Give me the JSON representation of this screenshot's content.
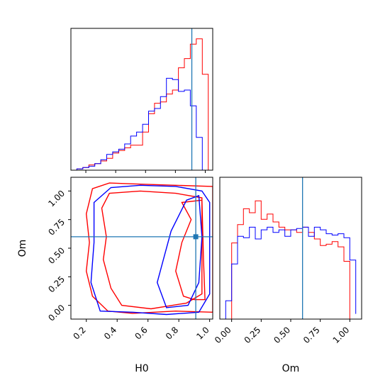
{
  "chart_data": [
    {
      "panel": "H0 marginal",
      "type": "histogram-step",
      "xlim": [
        0.1,
        1.05
      ],
      "truth": 0.91,
      "series": [
        {
          "color": "#ff0000",
          "edges": [
            0.14,
            0.18,
            0.22,
            0.26,
            0.3,
            0.34,
            0.38,
            0.42,
            0.46,
            0.5,
            0.54,
            0.58,
            0.62,
            0.66,
            0.7,
            0.74,
            0.78,
            0.82,
            0.86,
            0.9,
            0.94,
            0.98,
            1.02
          ],
          "values": [
            0.01,
            0.02,
            0.04,
            0.05,
            0.07,
            0.09,
            0.13,
            0.15,
            0.17,
            0.19,
            0.19,
            0.29,
            0.43,
            0.51,
            0.52,
            0.58,
            0.61,
            0.78,
            0.85,
            0.96,
            1.0,
            0.73,
            0.0
          ]
        },
        {
          "color": "#0000ff",
          "edges": [
            0.14,
            0.18,
            0.22,
            0.26,
            0.3,
            0.34,
            0.38,
            0.42,
            0.46,
            0.5,
            0.54,
            0.58,
            0.62,
            0.66,
            0.7,
            0.74,
            0.78,
            0.82,
            0.86,
            0.9,
            0.94,
            0.98,
            1.02
          ],
          "values": [
            0.01,
            0.02,
            0.03,
            0.05,
            0.08,
            0.12,
            0.14,
            0.16,
            0.2,
            0.26,
            0.29,
            0.35,
            0.45,
            0.47,
            0.56,
            0.7,
            0.69,
            0.6,
            0.61,
            0.49,
            0.25,
            0.0,
            0.0
          ]
        }
      ]
    },
    {
      "panel": "Om marginal",
      "type": "histogram-step",
      "xlim": [
        -0.1,
        1.1
      ],
      "truth": 0.6,
      "xlabel": "Om",
      "xticks": [
        "0.00",
        "0.25",
        "0.50",
        "0.75",
        "1.00"
      ],
      "series": [
        {
          "color": "#ff0000",
          "edges": [
            0.0,
            0.05,
            0.1,
            0.15,
            0.2,
            0.25,
            0.3,
            0.35,
            0.4,
            0.45,
            0.5,
            0.55,
            0.6,
            0.65,
            0.7,
            0.75,
            0.8,
            0.85,
            0.9,
            0.95,
            1.0
          ],
          "values": [
            0.58,
            0.72,
            0.84,
            0.81,
            0.9,
            0.76,
            0.8,
            0.74,
            0.7,
            0.68,
            0.68,
            0.66,
            0.7,
            0.66,
            0.61,
            0.56,
            0.57,
            0.59,
            0.55,
            0.44
          ]
        },
        {
          "color": "#0000ff",
          "edges": [
            -0.05,
            0.0,
            0.05,
            0.1,
            0.15,
            0.2,
            0.25,
            0.3,
            0.35,
            0.4,
            0.45,
            0.5,
            0.55,
            0.6,
            0.65,
            0.7,
            0.75,
            0.8,
            0.85,
            0.9,
            0.95,
            1.0,
            1.05
          ],
          "values": [
            0.14,
            0.42,
            0.63,
            0.62,
            0.7,
            0.61,
            0.68,
            0.7,
            0.66,
            0.68,
            0.63,
            0.68,
            0.69,
            0.7,
            0.63,
            0.7,
            0.68,
            0.65,
            0.64,
            0.65,
            0.62,
            0.45,
            0.04
          ]
        }
      ]
    },
    {
      "panel": "H0 vs Om joint",
      "type": "contour",
      "xlabel": "H0",
      "ylabel": "Om",
      "xlim": [
        0.1,
        1.02
      ],
      "ylim": [
        -0.12,
        1.12
      ],
      "xticks": [
        "0.2",
        "0.4",
        "0.6",
        "0.8",
        "1.0"
      ],
      "yticks": [
        "0.00",
        "0.25",
        "0.50",
        "0.75",
        "1.00"
      ],
      "truth": {
        "H0": 0.91,
        "Om": 0.6
      },
      "series": [
        {
          "color": "#ff0000",
          "contours": [
            [
              [
                0.24,
                1.02
              ],
              [
                0.35,
                1.07
              ],
              [
                0.55,
                1.06
              ],
              [
                0.78,
                1.05
              ],
              [
                1.02,
                1.04
              ],
              [
                1.02,
                -0.06
              ],
              [
                0.78,
                -0.05
              ],
              [
                0.5,
                -0.07
              ],
              [
                0.34,
                -0.05
              ],
              [
                0.24,
                0.08
              ],
              [
                0.2,
                0.3
              ],
              [
                0.22,
                0.55
              ],
              [
                0.2,
                0.8
              ],
              [
                0.24,
                1.02
              ]
            ],
            [
              [
                0.35,
                0.98
              ],
              [
                0.55,
                1.0
              ],
              [
                0.78,
                0.98
              ],
              [
                0.95,
                0.94
              ],
              [
                0.95,
                0.1
              ],
              [
                0.85,
                0.02
              ],
              [
                0.62,
                -0.03
              ],
              [
                0.43,
                0.0
              ],
              [
                0.36,
                0.15
              ],
              [
                0.31,
                0.4
              ],
              [
                0.33,
                0.6
              ],
              [
                0.3,
                0.85
              ],
              [
                0.35,
                0.98
              ]
            ],
            [
              [
                0.82,
                0.9
              ],
              [
                0.88,
                0.75
              ],
              [
                0.82,
                0.55
              ],
              [
                0.78,
                0.3
              ],
              [
                0.83,
                0.08
              ],
              [
                0.9,
                0.05
              ],
              [
                0.97,
                0.05
              ],
              [
                0.96,
                0.4
              ],
              [
                0.95,
                0.92
              ],
              [
                0.82,
                0.9
              ]
            ]
          ]
        },
        {
          "color": "#0000ff",
          "contours": [
            [
              [
                0.25,
                0.9
              ],
              [
                0.36,
                1.03
              ],
              [
                0.55,
                1.05
              ],
              [
                0.78,
                1.04
              ],
              [
                0.95,
                1.0
              ],
              [
                1.0,
                0.9
              ],
              [
                1.0,
                0.1
              ],
              [
                0.93,
                -0.06
              ],
              [
                0.72,
                -0.08
              ],
              [
                0.5,
                -0.06
              ],
              [
                0.29,
                -0.05
              ],
              [
                0.23,
                0.2
              ],
              [
                0.25,
                0.55
              ],
              [
                0.25,
                0.9
              ]
            ],
            [
              [
                0.85,
                0.92
              ],
              [
                0.93,
                0.96
              ],
              [
                0.95,
                0.6
              ],
              [
                0.93,
                0.2
              ],
              [
                0.86,
                0.0
              ],
              [
                0.72,
                -0.02
              ],
              [
                0.66,
                0.2
              ],
              [
                0.7,
                0.4
              ],
              [
                0.75,
                0.65
              ],
              [
                0.85,
                0.92
              ]
            ]
          ]
        }
      ]
    }
  ]
}
